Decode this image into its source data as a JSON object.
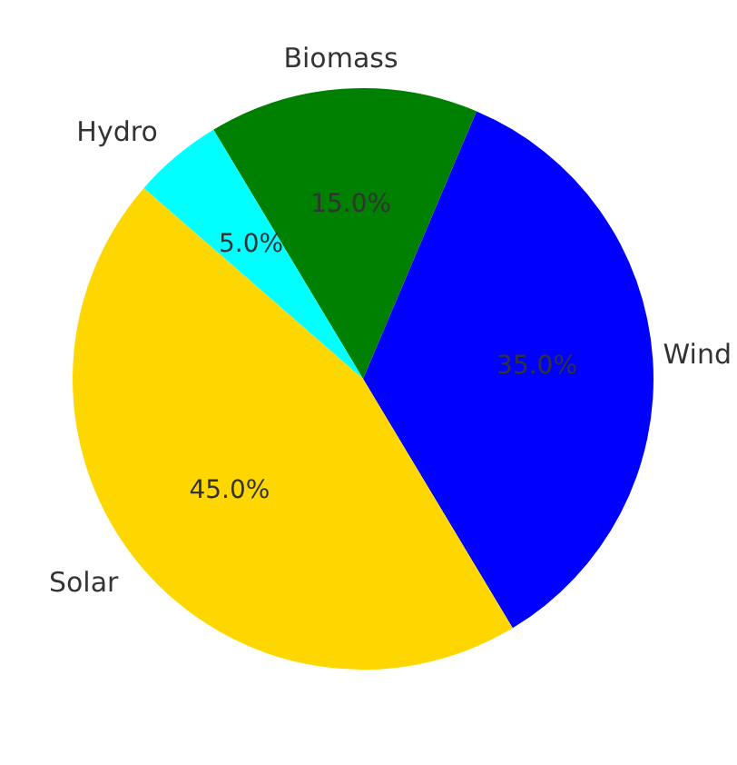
{
  "chart_data": {
    "type": "pie",
    "categories": [
      "Biomass",
      "Wind",
      "Solar",
      "Hydro"
    ],
    "values": [
      15,
      35,
      45,
      5
    ],
    "value_labels": [
      "15.0%",
      "35.0%",
      "45.0%",
      "5.0%"
    ],
    "colors": [
      "#008000",
      "#0000ff",
      "#ffd700",
      "#00ffff"
    ],
    "legend": false
  }
}
